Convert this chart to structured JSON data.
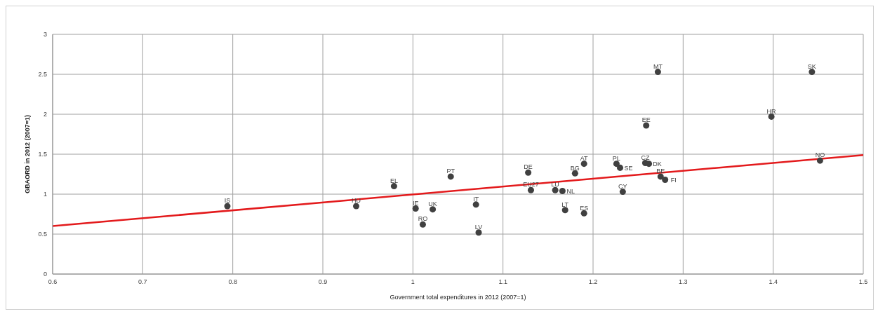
{
  "chart_data": {
    "type": "scatter",
    "xlabel": "Government total expenditures in 2012 (2007=1)",
    "ylabel": "GBAORD in 2012 (2007=1)",
    "xlim": [
      0.6,
      1.5
    ],
    "xticks": [
      0.6,
      0.7,
      0.8,
      0.9,
      1,
      1.1,
      1.2,
      1.3,
      1.4,
      1.5
    ],
    "ylim": [
      0,
      3
    ],
    "yticks": [
      0,
      0.5,
      1,
      1.5,
      2,
      2.5,
      3
    ],
    "grid": true,
    "legend": false,
    "series": [
      {
        "marker": "circle",
        "color": "#404040",
        "x": [
          0.794,
          0.937,
          0.979,
          1.042,
          1.003,
          1.022,
          1.011,
          1.07,
          1.073,
          1.128,
          1.131,
          1.158,
          1.166,
          1.18,
          1.19,
          1.169,
          1.19,
          1.226,
          1.23,
          1.233,
          1.258,
          1.262,
          1.275,
          1.28,
          1.272,
          1.259,
          1.398,
          1.443,
          1.452
        ],
        "values": [
          0.85,
          0.85,
          1.1,
          1.22,
          0.82,
          0.81,
          0.62,
          0.87,
          0.52,
          1.27,
          1.05,
          1.05,
          1.04,
          1.26,
          1.38,
          0.8,
          0.76,
          1.38,
          1.33,
          1.03,
          1.39,
          1.38,
          1.22,
          1.18,
          2.53,
          1.86,
          1.97,
          2.53,
          1.42
        ],
        "value_labels": [
          "IS",
          "HU",
          "EL",
          "PT",
          "IE",
          "UK",
          "RO",
          "IT",
          "LV",
          "DE",
          "EU27",
          "LU",
          "NL",
          "BG",
          "AT",
          "LT",
          "ES",
          "PL",
          "SE",
          "CY",
          "CZ",
          "DK",
          "BE",
          "FI",
          "MT",
          "EE",
          "HR",
          "SK",
          "NO"
        ]
      },
      {
        "type": "line",
        "color": "#e31a1c",
        "x": [
          0.6,
          1.5
        ],
        "values": [
          0.6,
          1.49
        ]
      }
    ]
  }
}
